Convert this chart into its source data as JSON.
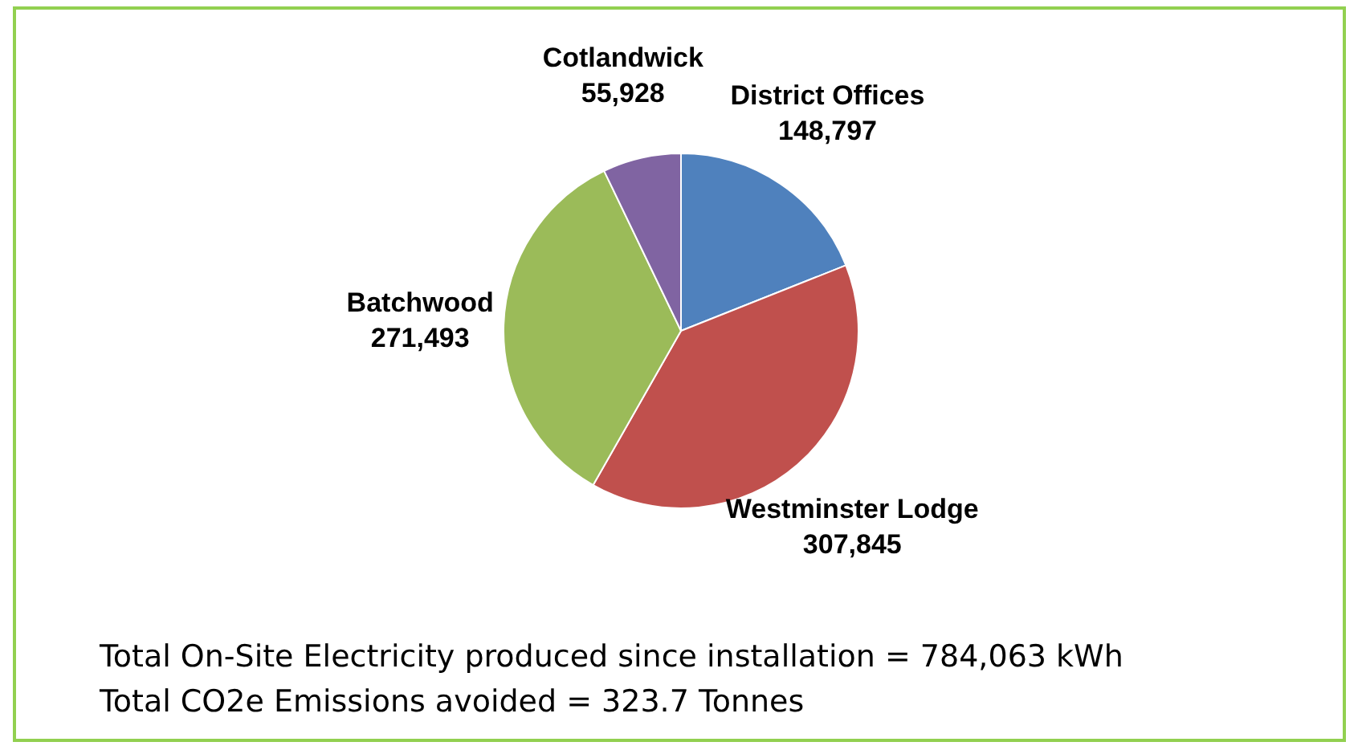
{
  "chart_data": {
    "type": "pie",
    "categories": [
      "District Offices",
      "Westminster Lodge",
      "Batchwood",
      "Cotlandwick"
    ],
    "values": [
      148797,
      307845,
      271493,
      55928
    ],
    "colors": [
      "#4f81bd",
      "#c0504d",
      "#9bbb59",
      "#8064a2"
    ],
    "value_labels": [
      "148,797",
      "307,845",
      "271,493",
      "55,928"
    ],
    "legend": false,
    "annotations": [
      "Total On-Site Electricity produced since installation = 784,063 kWh",
      "Total CO2e Emissions avoided = 323.7 Tonnes"
    ]
  }
}
